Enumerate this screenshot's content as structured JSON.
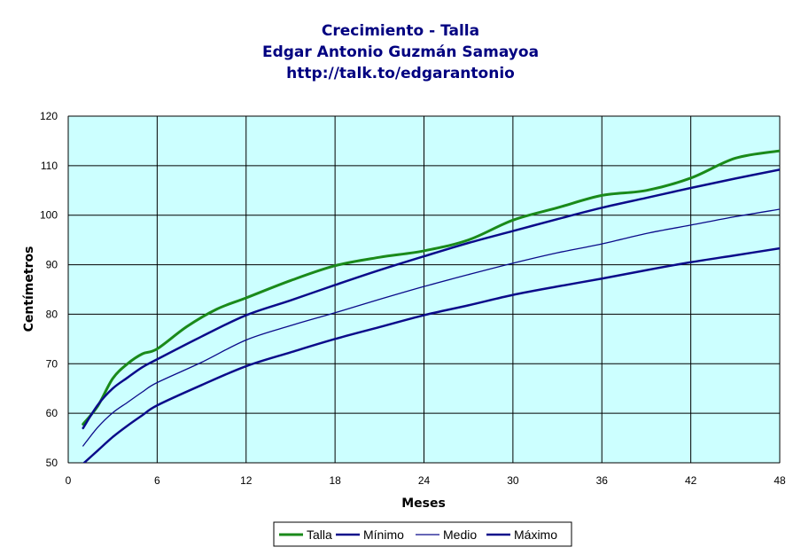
{
  "colors": {
    "plot_background": "#ccffff",
    "grid": "#000000",
    "talla": "#1a8a1a",
    "minimo": "#0b0b8a",
    "medio": "#0b0b8a",
    "maximo": "#0b0b8a",
    "title": "#000080"
  },
  "chart_data": {
    "type": "line",
    "title": [
      "Crecimiento - Talla",
      "Edgar Antonio Guzmán Samayoa",
      "http://talk.to/edgarantonio"
    ],
    "xlabel": "Meses",
    "ylabel": "Centímetros",
    "xlim": [
      0,
      48
    ],
    "ylim": [
      50,
      120
    ],
    "xticks": [
      0,
      6,
      12,
      18,
      24,
      30,
      36,
      42,
      48
    ],
    "yticks": [
      50,
      60,
      70,
      80,
      90,
      100,
      110,
      120
    ],
    "grid": true,
    "legend_position": "bottom",
    "series": [
      {
        "name": "Talla",
        "stroke_width": 3,
        "x": [
          1,
          2,
          3,
          4,
          5,
          6,
          8,
          10,
          12,
          15,
          18,
          21,
          24,
          27,
          30,
          33,
          36,
          39,
          42,
          45,
          48
        ],
        "y": [
          57.8,
          61.5,
          67,
          70,
          72,
          73,
          77.5,
          81,
          83.3,
          86.8,
          89.8,
          91.5,
          92.8,
          95,
          99,
          101.5,
          104,
          105,
          107.5,
          111.5,
          113
        ]
      },
      {
        "name": "Mínimo",
        "stroke_width": 2.5,
        "x": [
          1,
          2,
          3,
          4,
          5,
          6,
          9,
          12,
          15,
          18,
          21,
          24,
          27,
          30,
          33,
          36,
          39,
          42,
          45,
          48
        ],
        "y": [
          49.8,
          52.5,
          55.2,
          57.5,
          59.6,
          61.6,
          65.7,
          69.5,
          72.3,
          75,
          77.4,
          79.8,
          81.8,
          83.9,
          85.6,
          87.2,
          88.9,
          90.5,
          91.9,
          93.3
        ]
      },
      {
        "name": "Medio",
        "stroke_width": 1.3,
        "x": [
          1,
          2,
          3,
          4,
          5,
          6,
          9,
          12,
          15,
          18,
          21,
          24,
          27,
          30,
          33,
          36,
          39,
          42,
          45,
          48
        ],
        "y": [
          53.4,
          57.2,
          60.1,
          62.2,
          64.3,
          66.2,
          70.3,
          74.8,
          77.7,
          80.3,
          83,
          85.6,
          88,
          90.3,
          92.4,
          94.2,
          96.3,
          98,
          99.7,
          101.2
        ]
      },
      {
        "name": "Máximo",
        "stroke_width": 2.5,
        "x": [
          1,
          2,
          3,
          4,
          5,
          6,
          9,
          12,
          15,
          18,
          21,
          24,
          27,
          30,
          33,
          36,
          39,
          42,
          45,
          48
        ],
        "y": [
          57,
          61.7,
          65,
          67.2,
          69.3,
          70.9,
          75.5,
          79.8,
          82.8,
          85.9,
          88.9,
          91.7,
          94.4,
          96.8,
          99.2,
          101.5,
          103.5,
          105.5,
          107.4,
          109.2
        ]
      }
    ]
  }
}
